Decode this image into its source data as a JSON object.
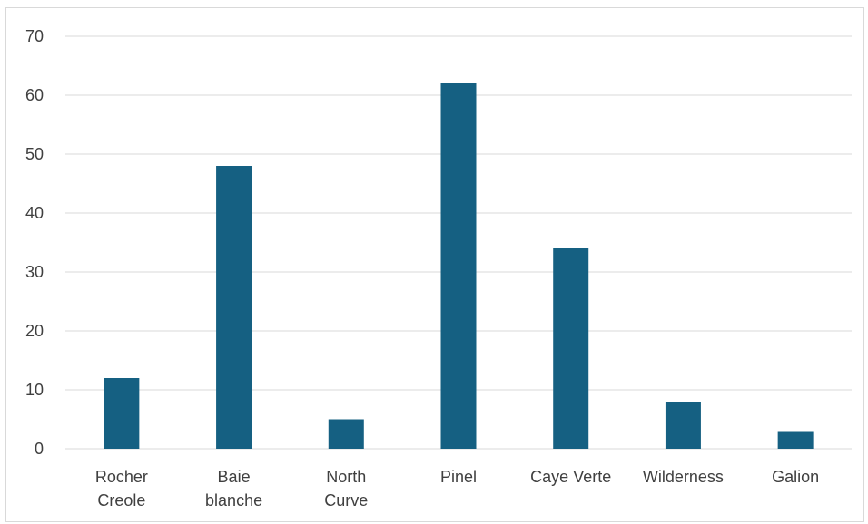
{
  "chart_data": {
    "type": "bar",
    "categories": [
      [
        "Rocher",
        "Creole"
      ],
      [
        "Baie",
        "blanche"
      ],
      [
        "North",
        "Curve"
      ],
      [
        "Pinel"
      ],
      [
        "Caye Verte"
      ],
      [
        "Wilderness"
      ],
      [
        "Galion"
      ]
    ],
    "values": [
      12,
      48,
      5,
      62,
      34,
      8,
      3
    ],
    "title": "",
    "xlabel": "",
    "ylabel": "",
    "ylim": [
      0,
      70
    ],
    "yticks": [
      0,
      10,
      20,
      30,
      40,
      50,
      60,
      70
    ],
    "grid": true,
    "legend": "none",
    "bar_color": "#156082",
    "gridline_color": "#d9d9d9"
  }
}
